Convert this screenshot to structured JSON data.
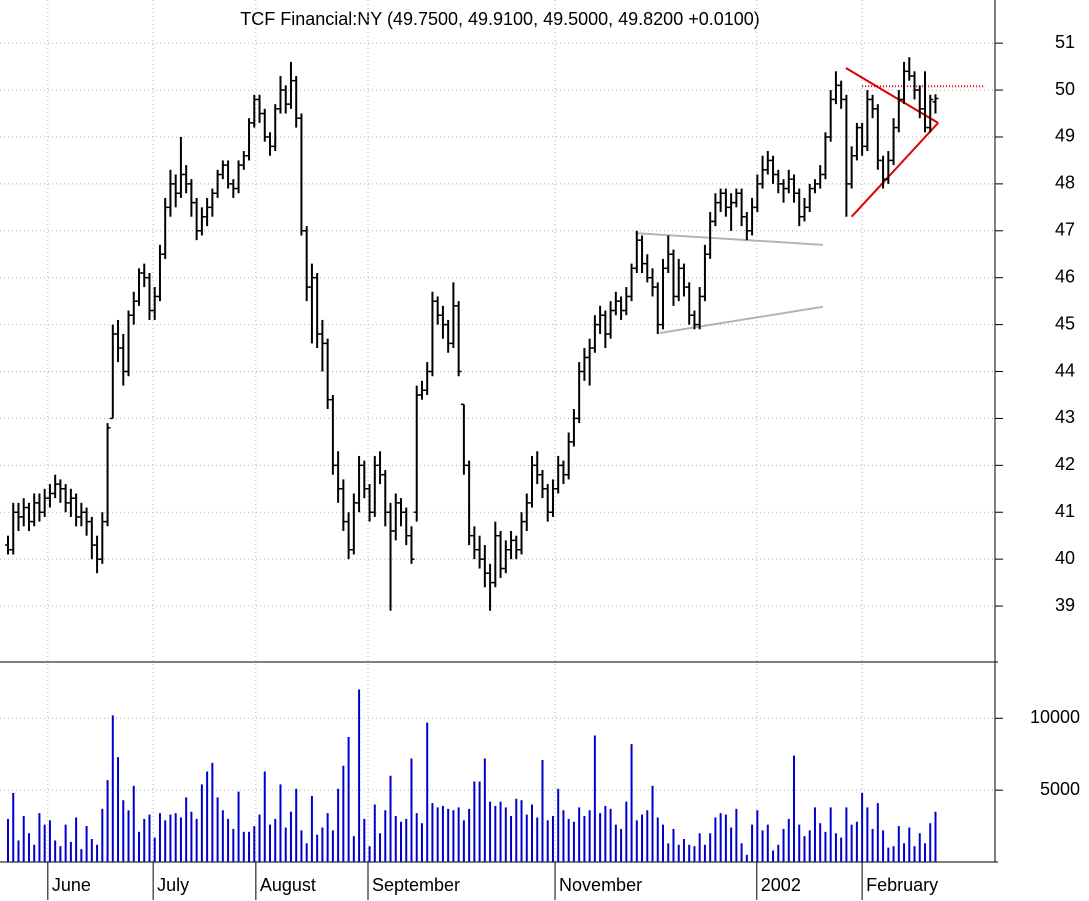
{
  "chart_data": {
    "type": "ohlc",
    "title": "TCF Financial:NY (49.7500, 49.9100, 49.5000, 49.8200 +0.0100)",
    "xlim": [
      -1.5,
      187.5
    ],
    "xticks": [
      {
        "value": 7.6,
        "label": "June"
      },
      {
        "value": 27.7,
        "label": "July"
      },
      {
        "value": 47.3,
        "label": "August"
      },
      {
        "value": 68.7,
        "label": "September"
      },
      {
        "value": 104.4,
        "label": "November"
      },
      {
        "value": 142.9,
        "label": "2002"
      },
      {
        "value": 163.0,
        "label": "February"
      }
    ],
    "ylim": [
      37.85,
      51.92
    ],
    "yticks": [
      39,
      40,
      41,
      42,
      43,
      44,
      45,
      46,
      47,
      48,
      49,
      50,
      51
    ],
    "grid": true,
    "color": "#000000",
    "ohlc": [
      [
        40.3,
        40.5,
        40.1,
        40.2
      ],
      [
        40.2,
        41.2,
        40.1,
        41.0
      ],
      [
        41.0,
        41.2,
        40.6,
        40.9
      ],
      [
        40.9,
        41.3,
        40.7,
        41.1
      ],
      [
        41.1,
        41.2,
        40.6,
        40.8
      ],
      [
        40.8,
        41.4,
        40.7,
        41.2
      ],
      [
        41.2,
        41.4,
        40.8,
        41.0
      ],
      [
        41.0,
        41.5,
        40.9,
        41.3
      ],
      [
        41.3,
        41.6,
        41.1,
        41.4
      ],
      [
        41.4,
        41.8,
        41.3,
        41.6
      ],
      [
        41.6,
        41.7,
        41.2,
        41.5
      ],
      [
        41.5,
        41.6,
        41.0,
        41.2
      ],
      [
        41.2,
        41.5,
        40.9,
        41.3
      ],
      [
        41.3,
        41.4,
        40.7,
        40.9
      ],
      [
        40.9,
        41.2,
        40.7,
        41.0
      ],
      [
        41.0,
        41.1,
        40.5,
        40.8
      ],
      [
        40.8,
        40.9,
        40.0,
        40.3
      ],
      [
        40.3,
        40.5,
        39.7,
        40.0
      ],
      [
        40.0,
        41.0,
        39.9,
        40.8
      ],
      [
        40.8,
        42.9,
        40.7,
        42.8
      ],
      [
        43.0,
        45.0,
        43.0,
        44.8
      ],
      [
        44.8,
        45.1,
        44.2,
        44.5
      ],
      [
        44.5,
        44.8,
        43.7,
        44.0
      ],
      [
        44.0,
        45.3,
        43.9,
        45.2
      ],
      [
        45.2,
        45.7,
        45.0,
        45.5
      ],
      [
        45.5,
        46.2,
        45.4,
        46.1
      ],
      [
        46.1,
        46.3,
        45.8,
        46.0
      ],
      [
        46.0,
        46.1,
        45.1,
        45.3
      ],
      [
        45.3,
        45.8,
        45.1,
        45.6
      ],
      [
        45.6,
        46.7,
        45.5,
        46.5
      ],
      [
        46.5,
        47.7,
        46.4,
        47.5
      ],
      [
        47.5,
        48.3,
        47.3,
        48.0
      ],
      [
        48.0,
        48.2,
        47.5,
        47.8
      ],
      [
        47.8,
        49.0,
        47.7,
        48.2
      ],
      [
        48.2,
        48.4,
        47.8,
        48.0
      ],
      [
        48.0,
        48.1,
        47.3,
        47.6
      ],
      [
        47.6,
        47.7,
        46.8,
        47.0
      ],
      [
        47.0,
        47.5,
        46.9,
        47.3
      ],
      [
        47.3,
        47.7,
        47.1,
        47.5
      ],
      [
        47.5,
        47.9,
        47.3,
        47.8
      ],
      [
        47.8,
        48.3,
        47.7,
        48.2
      ],
      [
        48.2,
        48.5,
        48.1,
        48.4
      ],
      [
        48.4,
        48.5,
        47.9,
        48.0
      ],
      [
        48.0,
        48.1,
        47.7,
        47.9
      ],
      [
        47.9,
        48.5,
        47.8,
        48.4
      ],
      [
        48.4,
        48.7,
        48.3,
        48.6
      ],
      [
        48.6,
        49.4,
        48.5,
        49.3
      ],
      [
        49.3,
        49.9,
        49.2,
        49.8
      ],
      [
        49.8,
        49.9,
        49.3,
        49.5
      ],
      [
        49.5,
        49.6,
        48.9,
        49.0
      ],
      [
        49.0,
        49.1,
        48.6,
        48.8
      ],
      [
        48.8,
        49.7,
        48.7,
        49.6
      ],
      [
        49.6,
        50.3,
        49.5,
        50.0
      ],
      [
        50.0,
        50.1,
        49.5,
        49.7
      ],
      [
        49.7,
        50.6,
        49.6,
        50.2
      ],
      [
        50.2,
        50.3,
        49.2,
        49.4
      ],
      [
        49.4,
        49.5,
        46.9,
        47.0
      ],
      [
        47.0,
        47.1,
        45.5,
        45.8
      ],
      [
        45.8,
        46.3,
        44.6,
        46.0
      ],
      [
        46.0,
        46.1,
        44.5,
        44.8
      ],
      [
        44.8,
        45.1,
        44.0,
        44.6
      ],
      [
        44.6,
        44.7,
        43.2,
        43.4
      ],
      [
        43.4,
        43.5,
        41.8,
        42.0
      ],
      [
        42.0,
        42.3,
        41.2,
        41.5
      ],
      [
        41.5,
        41.7,
        40.6,
        40.8
      ],
      [
        40.8,
        41.0,
        40.0,
        40.2
      ],
      [
        40.2,
        41.4,
        40.1,
        41.2
      ],
      [
        41.2,
        42.2,
        41.0,
        42.0
      ],
      [
        42.0,
        42.1,
        41.3,
        41.5
      ],
      [
        41.5,
        41.6,
        40.8,
        41.0
      ],
      [
        41.0,
        42.2,
        40.9,
        42.0
      ],
      [
        42.0,
        42.3,
        41.6,
        41.8
      ],
      [
        41.8,
        41.9,
        40.7,
        41.0
      ],
      [
        41.0,
        41.2,
        38.9,
        40.6
      ],
      [
        40.6,
        41.4,
        40.4,
        41.2
      ],
      [
        41.2,
        41.3,
        40.7,
        41.0
      ],
      [
        41.0,
        41.1,
        40.3,
        40.5
      ],
      [
        40.5,
        40.7,
        39.9,
        40.0
      ],
      [
        41.0,
        43.7,
        40.8,
        43.5
      ],
      [
        43.5,
        43.8,
        43.4,
        43.6
      ],
      [
        43.6,
        44.2,
        43.5,
        44.0
      ],
      [
        44.0,
        45.7,
        43.9,
        45.5
      ],
      [
        45.5,
        45.6,
        45.0,
        45.2
      ],
      [
        45.2,
        45.4,
        44.7,
        45.0
      ],
      [
        45.0,
        45.1,
        44.4,
        44.6
      ],
      [
        44.6,
        45.9,
        44.5,
        45.4
      ],
      [
        45.4,
        45.5,
        43.9,
        44.0
      ],
      [
        43.3,
        43.3,
        41.8,
        42.0
      ],
      [
        42.0,
        42.1,
        40.3,
        40.5
      ],
      [
        40.5,
        40.7,
        40.0,
        40.2
      ],
      [
        40.2,
        40.5,
        39.8,
        40.0
      ],
      [
        40.0,
        40.3,
        39.4,
        39.7
      ],
      [
        39.7,
        39.9,
        38.9,
        39.5
      ],
      [
        39.5,
        40.8,
        39.4,
        40.5
      ],
      [
        40.5,
        40.6,
        39.6,
        39.8
      ],
      [
        39.8,
        40.4,
        39.7,
        40.2
      ],
      [
        40.2,
        40.6,
        40.0,
        40.4
      ],
      [
        40.4,
        40.5,
        40.0,
        40.2
      ],
      [
        40.2,
        41.0,
        40.1,
        40.8
      ],
      [
        40.8,
        41.4,
        40.6,
        41.2
      ],
      [
        41.2,
        42.2,
        41.1,
        42.0
      ],
      [
        42.0,
        42.3,
        41.6,
        41.8
      ],
      [
        41.8,
        41.9,
        41.3,
        41.5
      ],
      [
        41.5,
        41.6,
        40.8,
        41.0
      ],
      [
        41.0,
        41.7,
        40.9,
        41.5
      ],
      [
        41.5,
        42.2,
        41.4,
        42.0
      ],
      [
        42.0,
        42.1,
        41.6,
        41.8
      ],
      [
        41.8,
        42.7,
        41.7,
        42.5
      ],
      [
        42.5,
        43.2,
        42.4,
        43.0
      ],
      [
        43.0,
        44.2,
        42.9,
        44.0
      ],
      [
        44.0,
        44.5,
        43.8,
        44.3
      ],
      [
        44.3,
        44.7,
        43.7,
        44.5
      ],
      [
        44.5,
        45.2,
        44.4,
        45.0
      ],
      [
        45.0,
        45.4,
        44.8,
        45.2
      ],
      [
        45.2,
        45.3,
        44.5,
        44.8
      ],
      [
        44.8,
        45.5,
        44.7,
        45.3
      ],
      [
        45.3,
        45.7,
        45.2,
        45.5
      ],
      [
        45.5,
        45.6,
        45.1,
        45.3
      ],
      [
        45.3,
        45.8,
        45.2,
        45.6
      ],
      [
        45.6,
        46.3,
        45.5,
        46.2
      ],
      [
        46.2,
        47.0,
        46.1,
        46.8
      ],
      [
        46.8,
        46.9,
        46.1,
        46.3
      ],
      [
        46.3,
        46.5,
        45.9,
        46.0
      ],
      [
        46.0,
        46.2,
        45.6,
        45.8
      ],
      [
        45.8,
        45.9,
        44.8,
        45.0
      ],
      [
        45.0,
        46.4,
        44.9,
        46.2
      ],
      [
        46.2,
        46.9,
        46.1,
        46.5
      ],
      [
        46.5,
        46.6,
        45.4,
        45.6
      ],
      [
        45.6,
        46.4,
        45.5,
        46.2
      ],
      [
        46.2,
        46.3,
        45.6,
        45.8
      ],
      [
        45.8,
        45.9,
        45.0,
        45.2
      ],
      [
        45.2,
        45.3,
        44.9,
        45.0
      ],
      [
        45.0,
        45.8,
        44.9,
        45.6
      ],
      [
        45.6,
        46.7,
        45.5,
        46.5
      ],
      [
        46.5,
        47.4,
        46.4,
        47.2
      ],
      [
        47.2,
        47.8,
        47.1,
        47.6
      ],
      [
        47.6,
        47.9,
        47.4,
        47.8
      ],
      [
        47.8,
        47.9,
        47.3,
        47.5
      ],
      [
        47.5,
        47.8,
        47.0,
        47.6
      ],
      [
        47.6,
        47.9,
        47.5,
        47.8
      ],
      [
        47.8,
        47.9,
        47.1,
        47.3
      ],
      [
        47.3,
        47.4,
        46.8,
        47.0
      ],
      [
        47.0,
        47.7,
        46.9,
        47.5
      ],
      [
        47.5,
        48.2,
        47.4,
        48.0
      ],
      [
        48.0,
        48.6,
        47.9,
        48.3
      ],
      [
        48.3,
        48.7,
        48.2,
        48.5
      ],
      [
        48.5,
        48.6,
        48.0,
        48.2
      ],
      [
        48.2,
        48.3,
        47.8,
        48.0
      ],
      [
        48.0,
        48.1,
        47.6,
        47.9
      ],
      [
        47.9,
        48.3,
        47.8,
        48.1
      ],
      [
        48.1,
        48.2,
        47.6,
        47.8
      ],
      [
        47.8,
        47.9,
        47.1,
        47.3
      ],
      [
        47.3,
        47.7,
        47.2,
        47.5
      ],
      [
        47.5,
        48.0,
        47.4,
        47.9
      ],
      [
        47.9,
        48.1,
        47.8,
        48.0
      ],
      [
        48.0,
        48.4,
        47.9,
        48.2
      ],
      [
        48.2,
        49.1,
        48.1,
        49.0
      ],
      [
        49.0,
        50.0,
        48.9,
        49.8
      ],
      [
        49.8,
        50.4,
        49.7,
        50.1
      ],
      [
        50.1,
        50.2,
        49.6,
        49.8
      ],
      [
        49.8,
        49.9,
        47.3,
        48.0
      ],
      [
        48.0,
        48.8,
        47.9,
        48.6
      ],
      [
        48.6,
        49.3,
        48.5,
        49.2
      ],
      [
        49.2,
        49.3,
        48.6,
        48.8
      ],
      [
        48.8,
        50.0,
        48.7,
        49.8
      ],
      [
        49.8,
        49.9,
        49.4,
        49.6
      ],
      [
        49.6,
        49.7,
        48.3,
        48.5
      ],
      [
        48.5,
        48.6,
        47.9,
        48.1
      ],
      [
        48.1,
        48.7,
        48.0,
        48.5
      ],
      [
        48.5,
        49.4,
        48.4,
        49.2
      ],
      [
        49.2,
        50.0,
        49.1,
        49.8
      ],
      [
        49.8,
        50.6,
        49.7,
        50.4
      ],
      [
        50.4,
        50.7,
        50.2,
        50.3
      ],
      [
        50.3,
        50.4,
        49.8,
        50.0
      ],
      [
        50.0,
        50.1,
        49.4,
        49.6
      ],
      [
        49.6,
        50.4,
        49.1,
        49.2
      ],
      [
        49.2,
        49.9,
        49.1,
        49.8
      ],
      [
        49.75,
        49.91,
        49.5,
        49.82
      ]
    ],
    "trendlines": [
      {
        "color": "#e00000",
        "style": "solid",
        "points": [
          [
            159.9,
            50.47
          ],
          [
            177.5,
            49.3
          ]
        ]
      },
      {
        "color": "#e00000",
        "style": "solid",
        "points": [
          [
            161.0,
            47.3
          ],
          [
            177.5,
            49.3
          ]
        ]
      },
      {
        "color": "#e00000",
        "style": "dotted",
        "points": [
          [
            163.0,
            50.08
          ],
          [
            186.5,
            50.08
          ]
        ]
      },
      {
        "color": "#b4b4b4",
        "style": "solid",
        "points": [
          [
            119.7,
            46.95
          ],
          [
            155.5,
            46.7
          ]
        ]
      },
      {
        "color": "#b4b4b4",
        "style": "solid",
        "points": [
          [
            124.4,
            44.82
          ],
          [
            155.5,
            45.38
          ]
        ]
      }
    ],
    "volume": {
      "color": "#0000cc",
      "ylim": [
        0,
        13500
      ],
      "yticks": [
        5000,
        10000
      ],
      "values": [
        3000,
        4800,
        1500,
        3200,
        2000,
        1200,
        3400,
        2600,
        2900,
        1500,
        1100,
        2600,
        1400,
        3100,
        900,
        2500,
        1600,
        1200,
        3700,
        5700,
        10200,
        7300,
        4300,
        3600,
        5300,
        2100,
        3000,
        3300,
        1700,
        3400,
        2900,
        3300,
        3400,
        3100,
        4500,
        3500,
        3000,
        5400,
        6300,
        6900,
        4500,
        3600,
        3000,
        2300,
        4900,
        2100,
        2100,
        2500,
        3300,
        6300,
        2600,
        3000,
        5400,
        2400,
        3500,
        5100,
        2200,
        1300,
        4600,
        1900,
        2400,
        3400,
        2200,
        5100,
        6700,
        8700,
        1800,
        12000,
        3000,
        1100,
        4000,
        2000,
        3600,
        6000,
        3200,
        2800,
        3000,
        7200,
        3400,
        2700,
        9700,
        4100,
        3800,
        3900,
        3700,
        3600,
        3800,
        2900,
        3700,
        5600,
        5600,
        7200,
        4200,
        3900,
        4200,
        3800,
        3200,
        4400,
        4300,
        3300,
        4000,
        3100,
        7100,
        2900,
        3200,
        5100,
        3600,
        3000,
        2800,
        3800,
        3200,
        3600,
        8800,
        3400,
        3900,
        3700,
        2600,
        2300,
        4200,
        8200,
        2900,
        3300,
        3600,
        5300,
        3100,
        2600,
        1300,
        2300,
        1200,
        1600,
        1200,
        1100,
        2000,
        1200,
        2000,
        3100,
        3400,
        3300,
        2400,
        3700,
        1300,
        500,
        2600,
        3600,
        2200,
        2600,
        800,
        1200,
        2300,
        3000,
        7400,
        2600,
        1800,
        2200,
        3800,
        2700,
        2100,
        3800,
        2000,
        1700,
        3800,
        2600,
        2800,
        4800,
        3800,
        2300,
        4100,
        2200,
        1000,
        1100,
        2500,
        1300,
        2400,
        1100,
        2000,
        1300,
        2700,
        3500
      ]
    }
  }
}
